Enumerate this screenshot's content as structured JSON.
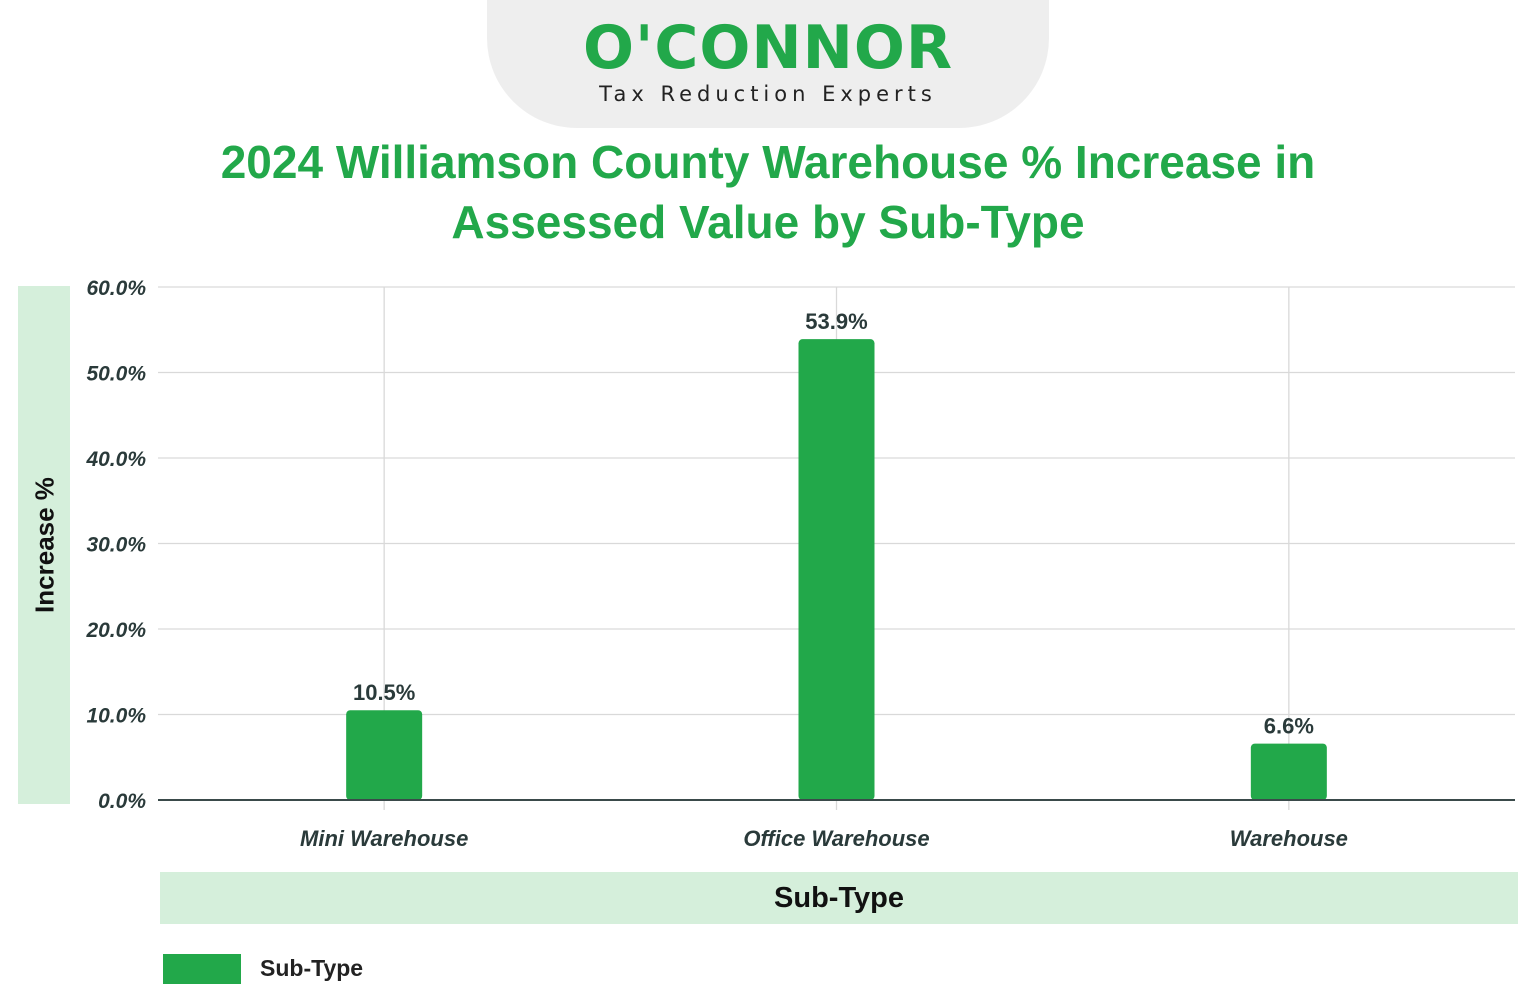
{
  "logo": {
    "wordmark": "O'CONNOR",
    "tagline": "Tax Reduction Experts"
  },
  "colors": {
    "brand_green": "#22a84a",
    "band_green": "#d5efdb",
    "grid": "#d9d9d9",
    "axis": "#3a4a4a"
  },
  "chart_data": {
    "type": "bar",
    "title": "2024 Williamson County Warehouse % Increase in Assessed Value by Sub-Type",
    "xlabel": "Sub-Type",
    "ylabel": "Increase %",
    "categories": [
      "Mini Warehouse",
      "Office Warehouse",
      "Warehouse"
    ],
    "series": [
      {
        "name": "Sub-Type",
        "values": [
          10.5,
          53.9,
          6.6
        ],
        "labels": [
          "10.5%",
          "53.9%",
          "6.6%"
        ]
      }
    ],
    "ylim": [
      0,
      60
    ],
    "yticks": [
      "0.0%",
      "10.0%",
      "20.0%",
      "30.0%",
      "40.0%",
      "50.0%",
      "60.0%"
    ],
    "grid": true,
    "legend_position": "bottom-left"
  }
}
